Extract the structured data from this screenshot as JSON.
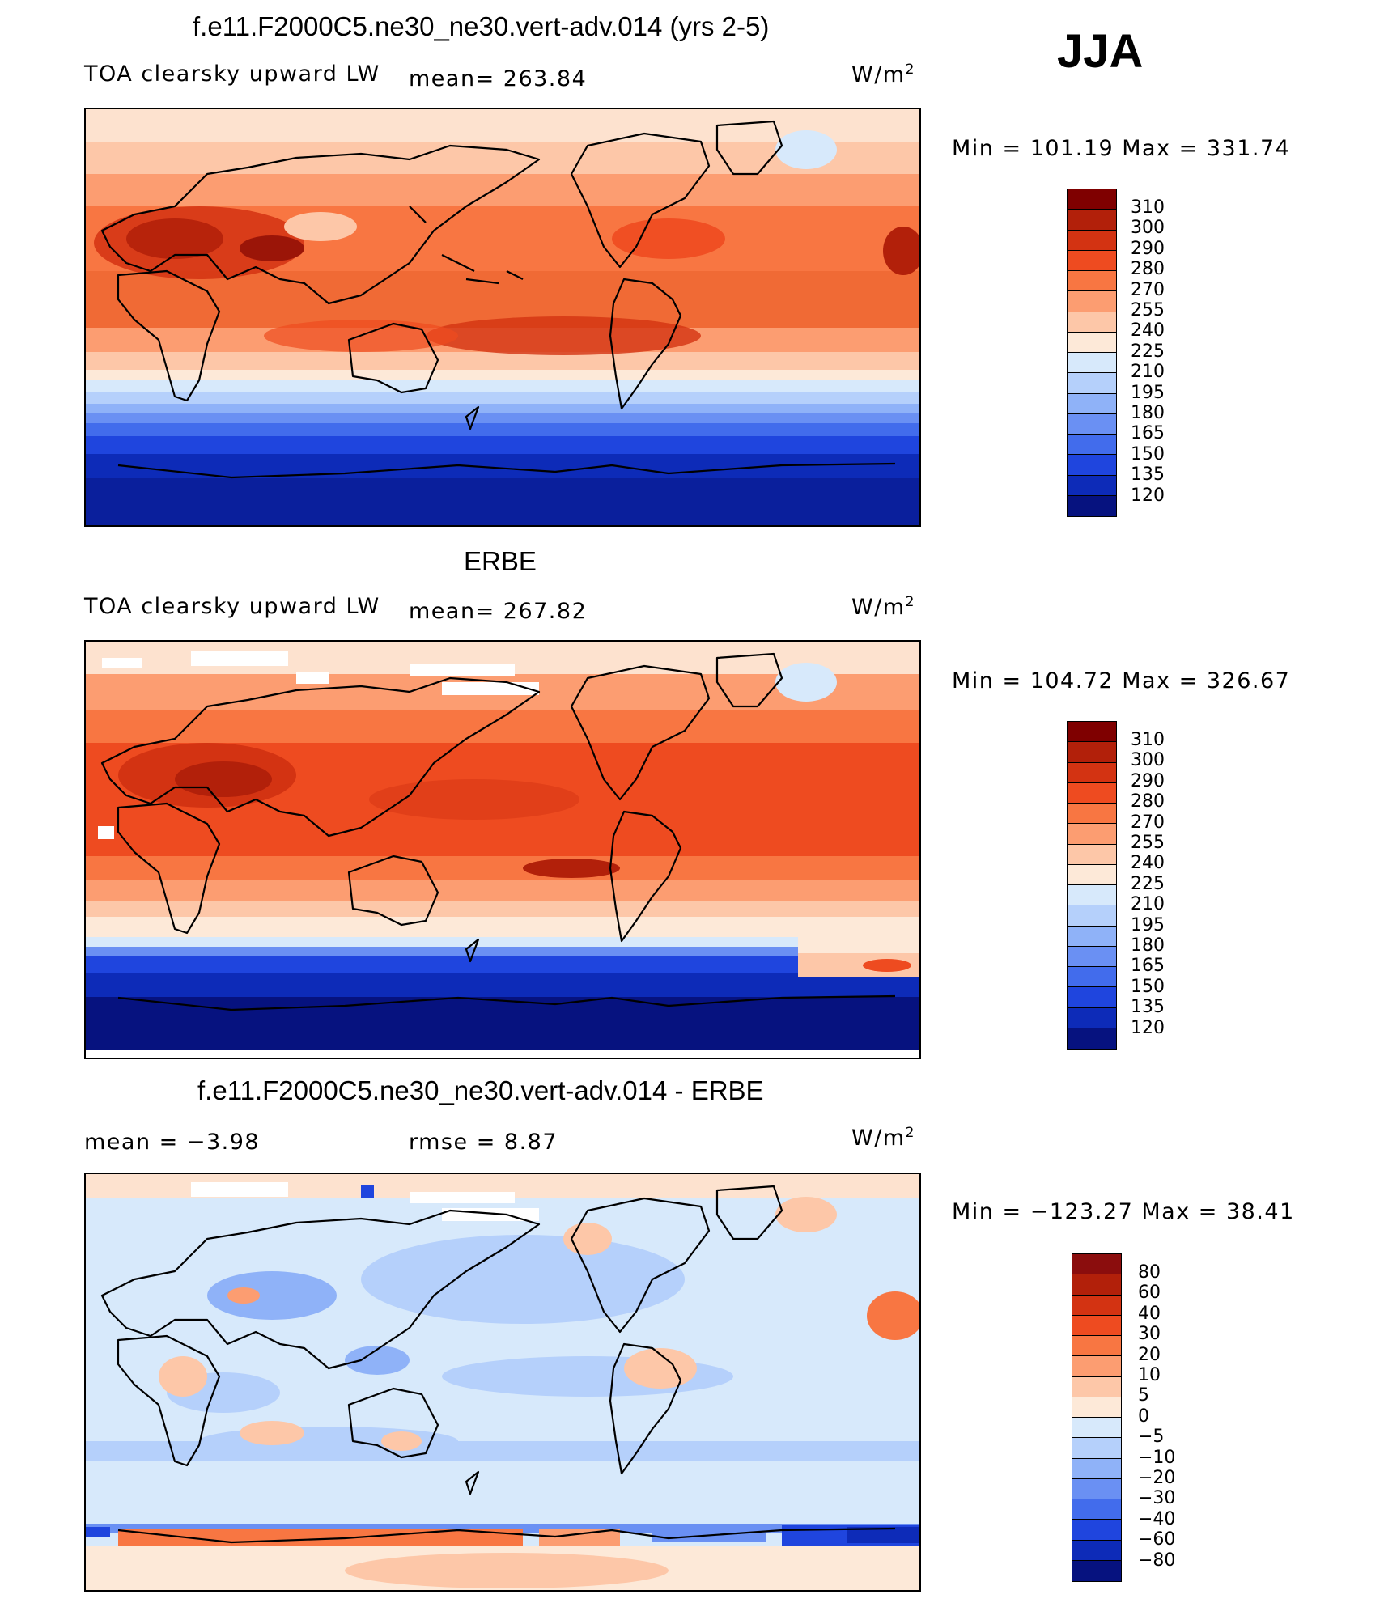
{
  "season": "JJA",
  "panels": [
    {
      "id": "model",
      "title": "f.e11.F2000C5.ne30_ne30.vert-adv.014 (yrs 2-5)",
      "left_label": "TOA clearsky upward LW",
      "middle_label": "mean=  263.84",
      "units": "W/m",
      "units_sup": "2",
      "minmax": "Min  =  101.19  Max  =  331.74",
      "colorbar": {
        "labels": [
          "310",
          "300",
          "290",
          "280",
          "270",
          "255",
          "240",
          "225",
          "210",
          "195",
          "180",
          "165",
          "150",
          "135",
          "120"
        ],
        "colors": [
          "#7f0000",
          "#b2200a",
          "#d33312",
          "#ee4b20",
          "#f87642",
          "#fc9d71",
          "#fdc7a8",
          "#fde9d8",
          "#d7e9fb",
          "#b5d0fb",
          "#8fb2f8",
          "#6a90f3",
          "#426cec",
          "#1f45de",
          "#0d2bb8",
          "#06127f"
        ]
      }
    },
    {
      "id": "obs",
      "title": "ERBE",
      "left_label": "TOA clearsky upward LW",
      "middle_label": "mean=  267.82",
      "units": "W/m",
      "units_sup": "2",
      "minmax": "Min  =  104.72  Max  =  326.67",
      "colorbar": {
        "labels": [
          "310",
          "300",
          "290",
          "280",
          "270",
          "255",
          "240",
          "225",
          "210",
          "195",
          "180",
          "165",
          "150",
          "135",
          "120"
        ],
        "colors": [
          "#7f0000",
          "#b2200a",
          "#d33312",
          "#ee4b20",
          "#f87642",
          "#fc9d71",
          "#fdc7a8",
          "#fde9d8",
          "#d7e9fb",
          "#b5d0fb",
          "#8fb2f8",
          "#6a90f3",
          "#426cec",
          "#1f45de",
          "#0d2bb8",
          "#06127f"
        ]
      }
    },
    {
      "id": "diff",
      "title": "f.e11.F2000C5.ne30_ne30.vert-adv.014 - ERBE",
      "left_label": "mean =   −3.98",
      "middle_label": "rmse  =     8.87",
      "units": "W/m",
      "units_sup": "2",
      "minmax": "Min  =  −123.27  Max  =    38.41",
      "colorbar": {
        "labels": [
          "80",
          "60",
          "40",
          "30",
          "20",
          "10",
          "5",
          "0",
          "−5",
          "−10",
          "−20",
          "−30",
          "−40",
          "−60",
          "−80"
        ],
        "colors": [
          "#8b0d0d",
          "#b2200a",
          "#d33312",
          "#ee4b20",
          "#f87642",
          "#fc9d71",
          "#fdc7a8",
          "#fde9d8",
          "#d7e9fb",
          "#b5d0fb",
          "#8fb2f8",
          "#6a90f3",
          "#426cec",
          "#1f45de",
          "#0d2bb8",
          "#06127f"
        ]
      }
    }
  ]
}
